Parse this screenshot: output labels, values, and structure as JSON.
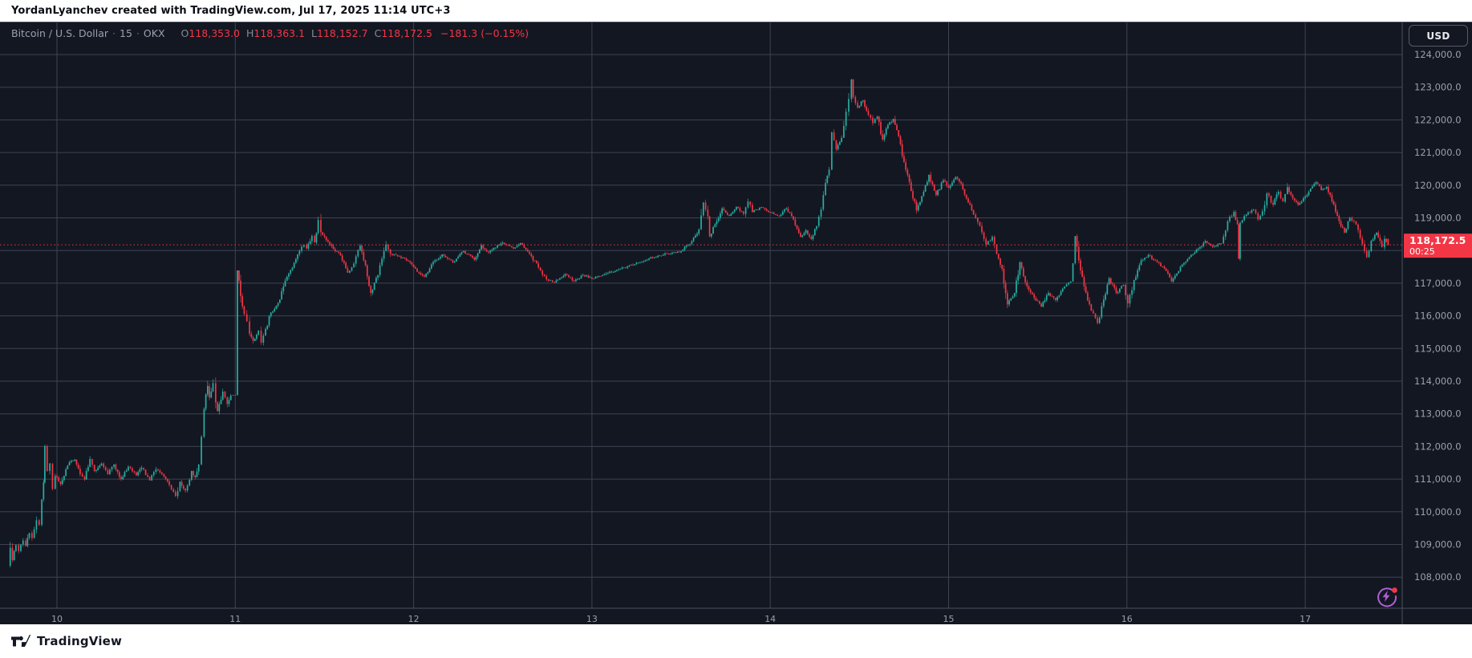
{
  "header": {
    "attribution": "YordanLyanchev created with TradingView.com, Jul 17, 2025 11:14 UTC+3"
  },
  "footer": {
    "brand": "TradingView"
  },
  "chart": {
    "legend": {
      "symbol": "Bitcoin / U.S. Dollar",
      "separator": "·",
      "interval": "15",
      "exchange": "OKX",
      "ohlc": [
        {
          "label": "O",
          "value": "118,353.0"
        },
        {
          "label": "H",
          "value": "118,363.1"
        },
        {
          "label": "L",
          "value": "118,152.7"
        },
        {
          "label": "C",
          "value": "118,172.5"
        }
      ],
      "change": "−181.3 (−0.15%)"
    },
    "price_axis": {
      "currency_button": "USD",
      "last_price_label": "118,172.5",
      "countdown": "00:25"
    },
    "time_axis": {
      "labels": [
        "10",
        "11",
        "12",
        "13",
        "14",
        "15",
        "16",
        "17"
      ]
    },
    "colors": {
      "up": "#26b0a2",
      "down": "#f23645",
      "badge": "#f23645",
      "grid": "#3d4352",
      "border": "#4b5160",
      "bg": "#131722",
      "axis_text": "#9aa0ac",
      "flash": "#b05fd6",
      "flash_dot": "#f23645"
    }
  },
  "chart_data": {
    "type": "candlestick",
    "title": "Bitcoin / U.S. Dollar",
    "exchange": "OKX",
    "interval_minutes": 15,
    "currency": "USD",
    "x_axis": {
      "unit": "day of July 2025",
      "ticks": [
        10,
        11,
        12,
        13,
        14,
        15,
        16,
        17
      ]
    },
    "y_axis": {
      "min": 107050,
      "max": 125000,
      "grid_step": 1000,
      "tick_values": [
        124000,
        123000,
        122000,
        121000,
        120000,
        119000,
        118000,
        117000,
        116000,
        115000,
        114000,
        113000,
        112000,
        111000,
        110000,
        109000,
        108000
      ]
    },
    "last": {
      "open": 118353.0,
      "high": 118363.1,
      "low": 118152.7,
      "close": 118172.5,
      "change": -181.3,
      "change_pct": -0.15,
      "countdown": "00:25"
    },
    "price_path": [
      [
        -0.274,
        108350
      ],
      [
        -0.262,
        108900
      ],
      [
        -0.25,
        108520
      ],
      [
        -0.23,
        108980
      ],
      [
        -0.215,
        108800
      ],
      [
        -0.19,
        109120
      ],
      [
        -0.175,
        108950
      ],
      [
        -0.155,
        109350
      ],
      [
        -0.14,
        109200
      ],
      [
        -0.115,
        109740
      ],
      [
        -0.1,
        109600
      ],
      [
        -0.085,
        110380
      ],
      [
        -0.075,
        110900
      ],
      [
        -0.068,
        112010
      ],
      [
        -0.055,
        111250
      ],
      [
        -0.04,
        111480
      ],
      [
        -0.025,
        110700
      ],
      [
        -0.01,
        111100
      ],
      [
        0.02,
        110850
      ],
      [
        0.05,
        111300
      ],
      [
        0.07,
        111520
      ],
      [
        0.1,
        111600
      ],
      [
        0.13,
        111150
      ],
      [
        0.155,
        110990
      ],
      [
        0.185,
        111620
      ],
      [
        0.21,
        111250
      ],
      [
        0.25,
        111480
      ],
      [
        0.285,
        111150
      ],
      [
        0.32,
        111450
      ],
      [
        0.36,
        111000
      ],
      [
        0.4,
        111380
      ],
      [
        0.445,
        111120
      ],
      [
        0.475,
        111350
      ],
      [
        0.52,
        110960
      ],
      [
        0.555,
        111300
      ],
      [
        0.6,
        111080
      ],
      [
        0.63,
        110820
      ],
      [
        0.665,
        110480
      ],
      [
        0.69,
        110920
      ],
      [
        0.72,
        110650
      ],
      [
        0.755,
        111250
      ],
      [
        0.775,
        111060
      ],
      [
        0.795,
        111450
      ],
      [
        0.81,
        112300
      ],
      [
        0.825,
        113150
      ],
      [
        0.845,
        113850
      ],
      [
        0.855,
        113500
      ],
      [
        0.875,
        113940
      ],
      [
        0.89,
        113350
      ],
      [
        0.9,
        113080
      ],
      [
        0.93,
        113680
      ],
      [
        0.955,
        113300
      ],
      [
        0.975,
        113560
      ],
      [
        1.0,
        113570
      ],
      [
        1.012,
        117390
      ],
      [
        1.03,
        116600
      ],
      [
        1.05,
        116050
      ],
      [
        1.065,
        115830
      ],
      [
        1.08,
        115450
      ],
      [
        1.1,
        115230
      ],
      [
        1.13,
        115550
      ],
      [
        1.145,
        115180
      ],
      [
        1.17,
        115600
      ],
      [
        1.2,
        116100
      ],
      [
        1.24,
        116390
      ],
      [
        1.27,
        116900
      ],
      [
        1.3,
        117300
      ],
      [
        1.33,
        117620
      ],
      [
        1.36,
        117990
      ],
      [
        1.385,
        118170
      ],
      [
        1.4,
        118060
      ],
      [
        1.43,
        118450
      ],
      [
        1.445,
        118250
      ],
      [
        1.465,
        118940
      ],
      [
        1.48,
        118560
      ],
      [
        1.51,
        118320
      ],
      [
        1.55,
        118050
      ],
      [
        1.59,
        117850
      ],
      [
        1.63,
        117320
      ],
      [
        1.665,
        117600
      ],
      [
        1.7,
        118150
      ],
      [
        1.73,
        117550
      ],
      [
        1.76,
        116700
      ],
      [
        1.8,
        117250
      ],
      [
        1.845,
        118180
      ],
      [
        1.87,
        117900
      ],
      [
        1.92,
        117820
      ],
      [
        1.97,
        117680
      ],
      [
        2.02,
        117350
      ],
      [
        2.06,
        117200
      ],
      [
        2.11,
        117650
      ],
      [
        2.16,
        117880
      ],
      [
        2.22,
        117640
      ],
      [
        2.28,
        117980
      ],
      [
        2.34,
        117720
      ],
      [
        2.38,
        118160
      ],
      [
        2.42,
        117940
      ],
      [
        2.5,
        118240
      ],
      [
        2.56,
        118060
      ],
      [
        2.6,
        118230
      ],
      [
        2.65,
        117900
      ],
      [
        2.7,
        117480
      ],
      [
        2.745,
        117120
      ],
      [
        2.79,
        117020
      ],
      [
        2.85,
        117280
      ],
      [
        2.9,
        117060
      ],
      [
        2.95,
        117250
      ],
      [
        3.0,
        117140
      ],
      [
        3.08,
        117300
      ],
      [
        3.15,
        117420
      ],
      [
        3.24,
        117580
      ],
      [
        3.32,
        117760
      ],
      [
        3.42,
        117900
      ],
      [
        3.5,
        117980
      ],
      [
        3.56,
        118290
      ],
      [
        3.6,
        118650
      ],
      [
        3.625,
        119470
      ],
      [
        3.65,
        119050
      ],
      [
        3.66,
        118430
      ],
      [
        3.7,
        118900
      ],
      [
        3.73,
        119290
      ],
      [
        3.77,
        119060
      ],
      [
        3.81,
        119340
      ],
      [
        3.85,
        119120
      ],
      [
        3.875,
        119500
      ],
      [
        3.9,
        119180
      ],
      [
        3.95,
        119330
      ],
      [
        4.0,
        119160
      ],
      [
        4.05,
        119060
      ],
      [
        4.09,
        119290
      ],
      [
        4.13,
        118950
      ],
      [
        4.17,
        118420
      ],
      [
        4.2,
        118620
      ],
      [
        4.23,
        118350
      ],
      [
        4.26,
        118750
      ],
      [
        4.285,
        119260
      ],
      [
        4.31,
        120070
      ],
      [
        4.33,
        120480
      ],
      [
        4.345,
        121620
      ],
      [
        4.37,
        121100
      ],
      [
        4.4,
        121450
      ],
      [
        4.425,
        122250
      ],
      [
        4.44,
        122640
      ],
      [
        4.455,
        123240
      ],
      [
        4.465,
        122700
      ],
      [
        4.49,
        122380
      ],
      [
        4.52,
        122600
      ],
      [
        4.55,
        122150
      ],
      [
        4.575,
        121900
      ],
      [
        4.6,
        122100
      ],
      [
        4.63,
        121400
      ],
      [
        4.66,
        121850
      ],
      [
        4.69,
        122030
      ],
      [
        4.72,
        121500
      ],
      [
        4.75,
        120700
      ],
      [
        4.78,
        120100
      ],
      [
        4.82,
        119230
      ],
      [
        4.86,
        119800
      ],
      [
        4.89,
        120320
      ],
      [
        4.93,
        119700
      ],
      [
        4.97,
        120150
      ],
      [
        5.0,
        119920
      ],
      [
        5.04,
        120250
      ],
      [
        5.07,
        120050
      ],
      [
        5.1,
        119600
      ],
      [
        5.14,
        119100
      ],
      [
        5.175,
        118750
      ],
      [
        5.21,
        118180
      ],
      [
        5.245,
        118420
      ],
      [
        5.27,
        117900
      ],
      [
        5.3,
        117440
      ],
      [
        5.33,
        116350
      ],
      [
        5.37,
        116700
      ],
      [
        5.4,
        117640
      ],
      [
        5.44,
        116900
      ],
      [
        5.48,
        116550
      ],
      [
        5.52,
        116280
      ],
      [
        5.56,
        116700
      ],
      [
        5.6,
        116480
      ],
      [
        5.65,
        116900
      ],
      [
        5.685,
        117050
      ],
      [
        5.71,
        118440
      ],
      [
        5.73,
        117700
      ],
      [
        5.76,
        116900
      ],
      [
        5.8,
        116150
      ],
      [
        5.835,
        115780
      ],
      [
        5.87,
        116500
      ],
      [
        5.9,
        117150
      ],
      [
        5.94,
        116700
      ],
      [
        5.98,
        116950
      ],
      [
        6.005,
        116380
      ],
      [
        6.04,
        117100
      ],
      [
        6.08,
        117700
      ],
      [
        6.12,
        117860
      ],
      [
        6.17,
        117650
      ],
      [
        6.21,
        117450
      ],
      [
        6.25,
        117050
      ],
      [
        6.3,
        117500
      ],
      [
        6.35,
        117800
      ],
      [
        6.4,
        118060
      ],
      [
        6.44,
        118290
      ],
      [
        6.48,
        118120
      ],
      [
        6.53,
        118220
      ],
      [
        6.565,
        118900
      ],
      [
        6.6,
        119180
      ],
      [
        6.62,
        118800
      ],
      [
        6.627,
        117750
      ],
      [
        6.635,
        118850
      ],
      [
        6.67,
        119100
      ],
      [
        6.71,
        119250
      ],
      [
        6.735,
        118950
      ],
      [
        6.76,
        119200
      ],
      [
        6.785,
        119750
      ],
      [
        6.82,
        119400
      ],
      [
        6.85,
        119800
      ],
      [
        6.875,
        119500
      ],
      [
        6.9,
        119940
      ],
      [
        6.93,
        119600
      ],
      [
        6.96,
        119400
      ],
      [
        7.0,
        119650
      ],
      [
        7.03,
        119900
      ],
      [
        7.06,
        120090
      ],
      [
        7.09,
        119850
      ],
      [
        7.12,
        119950
      ],
      [
        7.15,
        119500
      ],
      [
        7.19,
        118900
      ],
      [
        7.22,
        118550
      ],
      [
        7.25,
        119000
      ],
      [
        7.285,
        118800
      ],
      [
        7.32,
        118200
      ],
      [
        7.345,
        117800
      ],
      [
        7.37,
        118300
      ],
      [
        7.4,
        118550
      ],
      [
        7.43,
        118100
      ],
      [
        7.445,
        118360
      ],
      [
        7.465,
        118172.5
      ]
    ]
  }
}
